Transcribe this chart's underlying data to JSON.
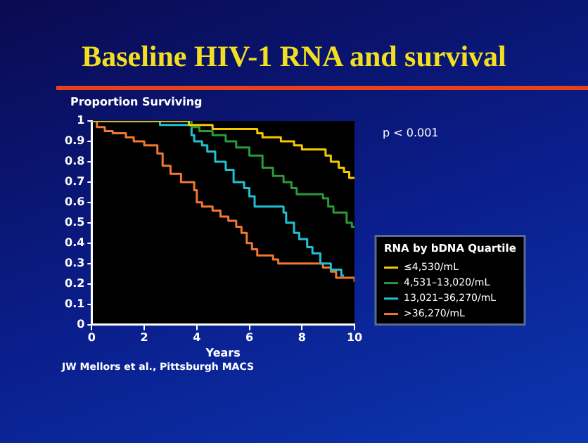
{
  "chart_data": {
    "type": "step",
    "title": "Baseline HIV-1 RNA and survival",
    "ylabel": "Proportion Surviving",
    "xlabel": "Years",
    "legend_title": "RNA by bDNA Quartile",
    "annotations": [
      "p < 0.001",
      "JW Mellors et al., Pittsburgh MACS"
    ],
    "xlim": [
      0,
      10
    ],
    "xticks": [
      0,
      2,
      4,
      6,
      8,
      10
    ],
    "ylim": [
      0,
      1
    ],
    "yticks": [
      0,
      0.1,
      0.2,
      0.3,
      0.4,
      0.5,
      0.6,
      0.7,
      0.8,
      0.9,
      1
    ],
    "grid": false,
    "legend": "bottom right",
    "marker": "none",
    "line_style": "solid",
    "series": [
      {
        "name": "≤4,530/mL",
        "color": "#f5c800",
        "x": [
          0,
          3.7,
          4.6,
          6.3,
          6.5,
          7.2,
          7.7,
          8.0,
          8.9,
          9.1,
          9.4,
          9.6,
          9.8,
          10
        ],
        "values": [
          1,
          0.98,
          0.96,
          0.94,
          0.92,
          0.9,
          0.88,
          0.86,
          0.83,
          0.8,
          0.77,
          0.75,
          0.72,
          0.72
        ]
      },
      {
        "name": "4,531–13,020/mL",
        "color": "#2a9a3a",
        "x": [
          0,
          3.8,
          4.1,
          4.6,
          5.1,
          5.5,
          6.0,
          6.5,
          6.9,
          7.3,
          7.6,
          7.8,
          8.8,
          9.0,
          9.2,
          9.7,
          9.9,
          10
        ],
        "values": [
          1,
          0.97,
          0.95,
          0.93,
          0.9,
          0.87,
          0.83,
          0.77,
          0.73,
          0.7,
          0.67,
          0.64,
          0.62,
          0.58,
          0.55,
          0.5,
          0.48,
          0.48
        ]
      },
      {
        "name": "13,021–36,270/mL",
        "color": "#20c0d0",
        "x": [
          0,
          2.6,
          3.8,
          3.9,
          4.2,
          4.4,
          4.7,
          5.1,
          5.4,
          5.8,
          6.0,
          6.2,
          7.3,
          7.4,
          7.7,
          7.9,
          8.2,
          8.4,
          8.7,
          9.1,
          9.5,
          9.6
        ],
        "values": [
          1,
          0.98,
          0.93,
          0.9,
          0.88,
          0.85,
          0.8,
          0.76,
          0.7,
          0.67,
          0.63,
          0.58,
          0.55,
          0.5,
          0.45,
          0.42,
          0.38,
          0.35,
          0.3,
          0.27,
          0.24,
          0.24
        ]
      },
      {
        "name": ">36,270/mL",
        "color": "#f07830",
        "x": [
          0,
          0.2,
          0.5,
          0.8,
          1.3,
          1.6,
          2.0,
          2.5,
          2.7,
          3.0,
          3.4,
          3.9,
          4.0,
          4.2,
          4.6,
          4.9,
          5.2,
          5.5,
          5.7,
          5.9,
          6.1,
          6.3,
          6.9,
          7.1,
          8.8,
          9.1,
          9.3,
          10
        ],
        "values": [
          1,
          0.97,
          0.95,
          0.94,
          0.92,
          0.9,
          0.88,
          0.84,
          0.78,
          0.74,
          0.7,
          0.66,
          0.6,
          0.58,
          0.56,
          0.53,
          0.51,
          0.48,
          0.45,
          0.4,
          0.37,
          0.34,
          0.32,
          0.3,
          0.28,
          0.26,
          0.23,
          0.21
        ]
      }
    ]
  }
}
